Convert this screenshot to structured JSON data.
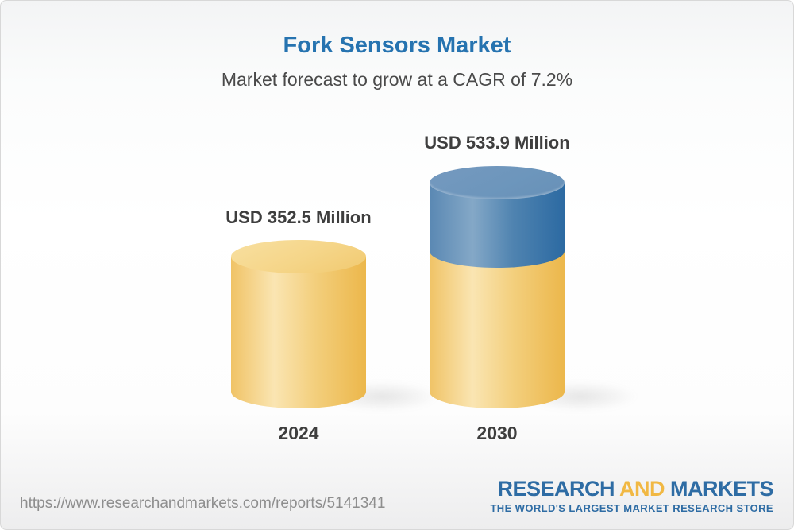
{
  "header": {
    "title": "Fork Sensors Market",
    "subtitle": "Market forecast to grow at a CAGR of 7.2%"
  },
  "chart_data": {
    "type": "bar",
    "subtype": "3d-cylinder",
    "title": "Fork Sensors Market",
    "subtitle": "Market forecast to grow at a CAGR of 7.2%",
    "cagr_percent": 7.2,
    "unit": "USD Million",
    "categories": [
      "2024",
      "2030"
    ],
    "values": [
      352.5,
      533.9
    ],
    "data_labels": [
      "USD 352.5 Million",
      "USD 533.9 Million"
    ],
    "legend": "none",
    "grid": false,
    "axes_shown": false,
    "colors": {
      "base_segment": "#F3CE7B",
      "growth_segment": "#4E82AF"
    },
    "notes": "2030 cylinder is yellow up to the 2024 value height; the incremental growth above it is blue"
  },
  "bars": [
    {
      "year": "2024",
      "value_label": "USD 352.5 Million"
    },
    {
      "year": "2030",
      "value_label": "USD 533.9 Million"
    }
  ],
  "footer": {
    "url": "https://www.researchandmarkets.com/reports/5141341",
    "logo": {
      "research": "RESEARCH",
      "and_word": "AND",
      "markets": "MARKETS",
      "tagline": "THE WORLD'S LARGEST MARKET RESEARCH STORE",
      "blue": "#2E6CA4",
      "gold": "#F1B843"
    }
  }
}
